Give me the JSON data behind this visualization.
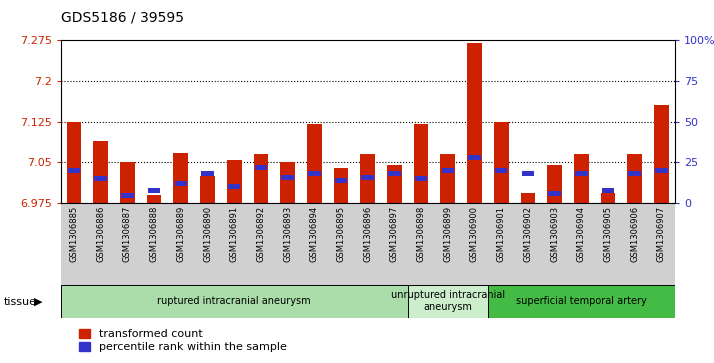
{
  "title": "GDS5186 / 39595",
  "samples": [
    "GSM1306885",
    "GSM1306886",
    "GSM1306887",
    "GSM1306888",
    "GSM1306889",
    "GSM1306890",
    "GSM1306891",
    "GSM1306892",
    "GSM1306893",
    "GSM1306894",
    "GSM1306895",
    "GSM1306896",
    "GSM1306897",
    "GSM1306898",
    "GSM1306899",
    "GSM1306900",
    "GSM1306901",
    "GSM1306902",
    "GSM1306903",
    "GSM1306904",
    "GSM1306905",
    "GSM1306906",
    "GSM1306907"
  ],
  "red_values": [
    7.125,
    7.09,
    7.05,
    6.99,
    7.068,
    7.025,
    7.055,
    7.065,
    7.05,
    7.12,
    7.04,
    7.065,
    7.045,
    7.12,
    7.065,
    7.27,
    7.125,
    6.993,
    7.045,
    7.065,
    6.993,
    7.065,
    7.155
  ],
  "blue_pcts": [
    20,
    15,
    5,
    8,
    12,
    18,
    10,
    22,
    16,
    18,
    14,
    16,
    18,
    15,
    20,
    28,
    20,
    18,
    6,
    18,
    8,
    18,
    20
  ],
  "ymin": 6.975,
  "ymax": 7.275,
  "yticks": [
    6.975,
    7.05,
    7.125,
    7.2,
    7.275
  ],
  "ytick_labels": [
    "6.975",
    "7.05",
    "7.125",
    "7.2",
    "7.275"
  ],
  "right_yticks": [
    0,
    25,
    50,
    75,
    100
  ],
  "right_ytick_labels": [
    "0",
    "25",
    "50",
    "75",
    "100%"
  ],
  "groups": [
    {
      "label": "ruptured intracranial aneurysm",
      "start": 0,
      "end": 13,
      "color": "#aaddaa"
    },
    {
      "label": "unruptured intracranial\naneurysm",
      "start": 13,
      "end": 16,
      "color": "#cceecc"
    },
    {
      "label": "superficial temporal artery",
      "start": 16,
      "end": 23,
      "color": "#44bb44"
    }
  ],
  "bar_color_red": "#cc2200",
  "bar_color_blue": "#3333cc",
  "bar_width": 0.55,
  "legend_red": "transformed count",
  "legend_blue": "percentile rank within the sample",
  "tissue_label": "tissue"
}
